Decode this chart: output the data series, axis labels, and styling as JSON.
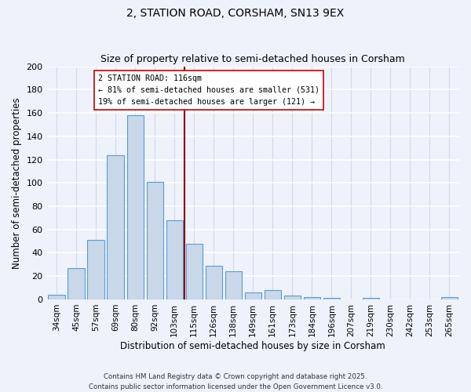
{
  "title_line1": "2, STATION ROAD, CORSHAM, SN13 9EX",
  "title_line2": "Size of property relative to semi-detached houses in Corsham",
  "xlabel": "Distribution of semi-detached houses by size in Corsham",
  "ylabel": "Number of semi-detached properties",
  "bar_labels": [
    "34sqm",
    "45sqm",
    "57sqm",
    "69sqm",
    "80sqm",
    "92sqm",
    "103sqm",
    "115sqm",
    "126sqm",
    "138sqm",
    "149sqm",
    "161sqm",
    "173sqm",
    "184sqm",
    "196sqm",
    "207sqm",
    "219sqm",
    "230sqm",
    "242sqm",
    "253sqm",
    "265sqm"
  ],
  "bar_values": [
    4,
    27,
    51,
    124,
    158,
    101,
    68,
    48,
    29,
    24,
    6,
    8,
    3,
    2,
    1,
    0,
    1,
    0,
    0,
    0,
    2
  ],
  "bar_color": "#c8d8e8",
  "bar_edge_color": "#5b9bd5",
  "vline_color": "#8b0000",
  "annotation_title": "2 STATION ROAD: 116sqm",
  "annotation_line1": "← 81% of semi-detached houses are smaller (531)",
  "annotation_line2": "19% of semi-detached houses are larger (121) →",
  "annotation_box_color": "#ffffff",
  "annotation_box_edge": "#cc0000",
  "ylim": [
    0,
    200
  ],
  "yticks": [
    0,
    20,
    40,
    60,
    80,
    100,
    120,
    140,
    160,
    180,
    200
  ],
  "footer_line1": "Contains HM Land Registry data © Crown copyright and database right 2025.",
  "footer_line2": "Contains public sector information licensed under the Open Government Licence v3.0.",
  "bg_color": "#eef2fa",
  "grid_color": "#d8dff0",
  "title_fontsize": 10,
  "subtitle_fontsize": 9
}
